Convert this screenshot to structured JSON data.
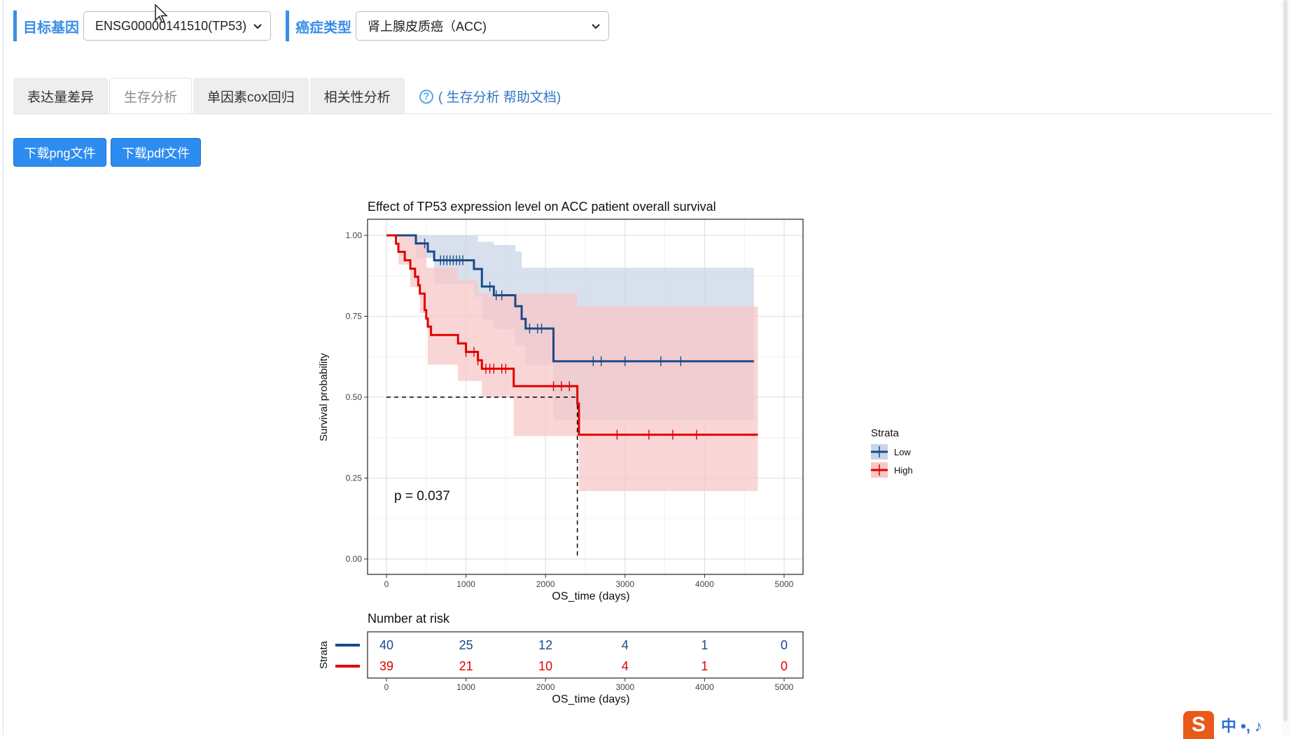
{
  "filters": {
    "gene": {
      "label": "目标基因",
      "value": "ENSG00000141510(TP53)"
    },
    "cancer": {
      "label": "癌症类型",
      "value": "肾上腺皮质癌（ACC)"
    }
  },
  "tabs": [
    {
      "label": "表达量差异",
      "active": false
    },
    {
      "label": "生存分析",
      "active": true
    },
    {
      "label": "单因素cox回归",
      "active": false
    },
    {
      "label": "相关性分析",
      "active": false
    }
  ],
  "help": {
    "icon": "question-circle-icon",
    "text": "( 生存分析 帮助文档)"
  },
  "buttons": {
    "png": "下载png文件",
    "pdf": "下载pdf文件"
  },
  "chart_data": {
    "type": "line",
    "title": "Effect of TP53 expression level on ACC patient overall survival",
    "xlabel": "OS_time (days)",
    "ylabel": "Survival probability",
    "xlim": [
      0,
      5000
    ],
    "ylim": [
      0,
      1
    ],
    "x_ticks": [
      "0",
      "1000",
      "2000",
      "3000",
      "4000",
      "5000"
    ],
    "y_ticks": [
      "0.00",
      "0.25",
      "0.50",
      "0.75",
      "1.00"
    ],
    "grid": true,
    "pvalue_label": "p = 0.037",
    "median_line": {
      "y": 0.5,
      "x": 2400
    },
    "legend": {
      "title": "Strata",
      "position": "right"
    },
    "series": [
      {
        "name": "Low",
        "color": "#1a4a8a",
        "fill": "#c9d6e6",
        "steps": [
          [
            0,
            1.0
          ],
          [
            370,
            0.975
          ],
          [
            520,
            0.95
          ],
          [
            600,
            0.923
          ],
          [
            1100,
            0.896
          ],
          [
            1200,
            0.842
          ],
          [
            1350,
            0.815
          ],
          [
            1350,
            0.815
          ],
          [
            1620,
            0.781
          ],
          [
            1700,
            0.742
          ],
          [
            1750,
            0.712
          ],
          [
            2100,
            0.685
          ],
          [
            2100,
            0.611
          ],
          [
            4620,
            0.611
          ]
        ],
        "censor_x": [
          480,
          680,
          720,
          760,
          800,
          840,
          880,
          920,
          960,
          1300,
          1380,
          1450,
          1800,
          1900,
          1950,
          2600,
          2700,
          3000,
          3450,
          3700
        ],
        "ci_upper": [
          [
            0,
            1.0
          ],
          [
            370,
            1.0
          ],
          [
            1000,
            1.0
          ],
          [
            1150,
            0.98
          ],
          [
            1350,
            0.97
          ],
          [
            1620,
            0.95
          ],
          [
            1700,
            0.9
          ],
          [
            2100,
            0.9
          ],
          [
            4620,
            0.865
          ]
        ],
        "ci_lower": [
          [
            0,
            1.0
          ],
          [
            370,
            0.93
          ],
          [
            600,
            0.85
          ],
          [
            1100,
            0.81
          ],
          [
            1200,
            0.74
          ],
          [
            1350,
            0.71
          ],
          [
            1620,
            0.66
          ],
          [
            1750,
            0.6
          ],
          [
            2100,
            0.43
          ],
          [
            4620,
            0.43
          ]
        ]
      },
      {
        "name": "High",
        "color": "#e00000",
        "fill": "#f8c7c7",
        "steps": [
          [
            0,
            1.0
          ],
          [
            120,
            0.974
          ],
          [
            150,
            0.949
          ],
          [
            230,
            0.923
          ],
          [
            300,
            0.897
          ],
          [
            360,
            0.872
          ],
          [
            400,
            0.846
          ],
          [
            420,
            0.82
          ],
          [
            480,
            0.769
          ],
          [
            500,
            0.743
          ],
          [
            520,
            0.718
          ],
          [
            560,
            0.692
          ],
          [
            900,
            0.666
          ],
          [
            1000,
            0.64
          ],
          [
            1150,
            0.614
          ],
          [
            1200,
            0.588
          ],
          [
            1600,
            0.56
          ],
          [
            1600,
            0.534
          ],
          [
            2400,
            0.534
          ],
          [
            2400,
            0.48
          ],
          [
            2420,
            0.44
          ],
          [
            2420,
            0.384
          ],
          [
            4670,
            0.384
          ]
        ],
        "censor_x": [
          1000,
          1100,
          1150,
          1250,
          1300,
          1350,
          1450,
          1500,
          2100,
          2200,
          2300,
          2900,
          3300,
          3600,
          3900
        ],
        "ci_upper": [
          [
            0,
            1.0
          ],
          [
            150,
            1.0
          ],
          [
            400,
            0.98
          ],
          [
            500,
            0.9
          ],
          [
            900,
            0.86
          ],
          [
            1150,
            0.82
          ],
          [
            1600,
            0.82
          ],
          [
            2400,
            0.78
          ],
          [
            4670,
            0.68
          ]
        ],
        "ci_lower": [
          [
            0,
            1.0
          ],
          [
            150,
            0.91
          ],
          [
            300,
            0.84
          ],
          [
            420,
            0.76
          ],
          [
            520,
            0.6
          ],
          [
            900,
            0.55
          ],
          [
            1200,
            0.5
          ],
          [
            1600,
            0.38
          ],
          [
            2420,
            0.21
          ],
          [
            4670,
            0.21
          ]
        ]
      }
    ],
    "risk_table": {
      "title": "Number at risk",
      "ylabel": "Strata",
      "xlabel": "OS_time (days)",
      "x": [
        0,
        1000,
        2000,
        3000,
        4000,
        5000
      ],
      "x_ticks": [
        "0",
        "1000",
        "2000",
        "3000",
        "4000",
        "5000"
      ],
      "rows": [
        {
          "strata": "Low",
          "color": "#1a4a8a",
          "values": [
            40,
            25,
            12,
            4,
            1,
            0
          ]
        },
        {
          "strata": "High",
          "color": "#e00000",
          "values": [
            39,
            21,
            10,
            4,
            1,
            0
          ]
        }
      ]
    }
  },
  "ime": {
    "logo": "S",
    "text": "中 •, ♪"
  }
}
